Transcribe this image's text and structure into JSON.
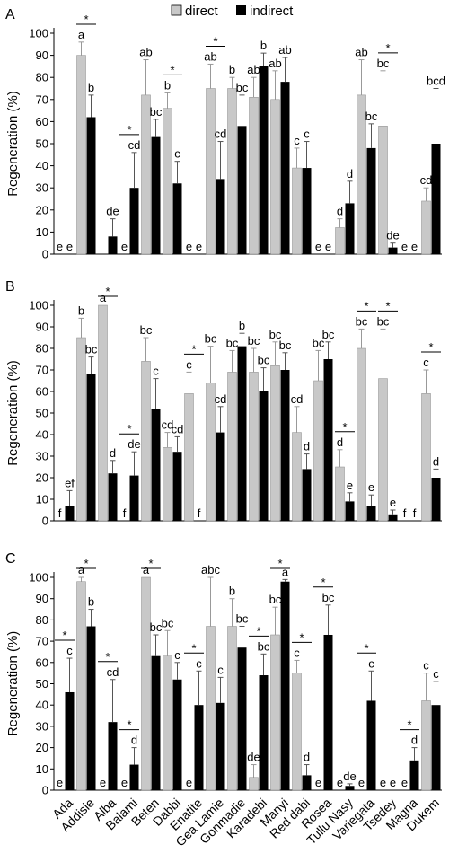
{
  "legend": {
    "direct": "direct",
    "indirect": "indirect"
  },
  "chart_data": [
    {
      "panel": "A",
      "type": "bar",
      "ylabel": "Regeneration (%)",
      "ylim": [
        0,
        100
      ],
      "yticks": [
        0,
        10,
        20,
        30,
        40,
        50,
        60,
        70,
        80,
        90,
        100
      ],
      "series": [
        {
          "name": "direct"
        },
        {
          "name": "indirect"
        }
      ],
      "groups": [
        {
          "d": 0,
          "de": 0,
          "i": 0,
          "ie": 0,
          "dl": "e",
          "il": "e",
          "star": false
        },
        {
          "d": 90,
          "de": 6,
          "i": 62,
          "ie": 10,
          "dl": "a",
          "il": "b",
          "star": true
        },
        {
          "d": 0,
          "de": 0,
          "i": 8,
          "ie": 8,
          "dl": "",
          "il": "de",
          "star": false
        },
        {
          "d": 0,
          "de": 0,
          "i": 30,
          "ie": 16,
          "dl": "e",
          "il": "cd",
          "star": true
        },
        {
          "d": 72,
          "de": 16,
          "i": 53,
          "ie": 8,
          "dl": "ab",
          "il": "bc",
          "star": false
        },
        {
          "d": 66,
          "de": 7,
          "i": 32,
          "ie": 10,
          "dl": "b",
          "il": "c",
          "star": true
        },
        {
          "d": 0,
          "de": 0,
          "i": 0,
          "ie": 0,
          "dl": "e",
          "il": "e",
          "star": false
        },
        {
          "d": 75,
          "de": 11,
          "i": 34,
          "ie": 17,
          "dl": "ab",
          "il": "cd",
          "star": true
        },
        {
          "d": 75,
          "de": 5,
          "i": 58,
          "ie": 14,
          "dl": "b",
          "il": "bc",
          "star": false
        },
        {
          "d": 71,
          "de": 9,
          "i": 85,
          "ie": 6,
          "dl": "ab",
          "il": "b",
          "star": false
        },
        {
          "d": 70,
          "de": 13,
          "i": 78,
          "ie": 11,
          "dl": "ab",
          "il": "ab",
          "star": false
        },
        {
          "d": 39,
          "de": 9,
          "i": 39,
          "ie": 12,
          "dl": "c",
          "il": "c",
          "star": false
        },
        {
          "d": 0,
          "de": 0,
          "i": 0,
          "ie": 0,
          "dl": "e",
          "il": "e",
          "star": false
        },
        {
          "d": 12,
          "de": 4,
          "i": 23,
          "ie": 10,
          "dl": "d",
          "il": "d",
          "star": false
        },
        {
          "d": 72,
          "de": 16,
          "i": 48,
          "ie": 11,
          "dl": "ab",
          "il": "bc",
          "star": false
        },
        {
          "d": 58,
          "de": 25,
          "i": 3,
          "ie": 2,
          "dl": "bc",
          "il": "de",
          "star": true
        },
        {
          "d": 0,
          "de": 0,
          "i": 0,
          "ie": 0,
          "dl": "e",
          "il": "e",
          "star": false
        },
        {
          "d": 24,
          "de": 6,
          "i": 50,
          "ie": 25,
          "dl": "cd",
          "il": "bcd",
          "star": false
        }
      ]
    },
    {
      "panel": "B",
      "type": "bar",
      "ylabel": "Regeneration (%)",
      "ylim": [
        0,
        100
      ],
      "yticks": [
        0,
        10,
        20,
        30,
        40,
        50,
        60,
        70,
        80,
        90,
        100
      ],
      "series": [
        {
          "name": "direct"
        },
        {
          "name": "indirect"
        }
      ],
      "groups": [
        {
          "d": 0,
          "de": 0,
          "i": 7,
          "ie": 7,
          "dl": "f",
          "il": "ef",
          "star": false
        },
        {
          "d": 85,
          "de": 9,
          "i": 68,
          "ie": 8,
          "dl": "b",
          "il": "bc",
          "star": false
        },
        {
          "d": 100,
          "de": 0,
          "i": 22,
          "ie": 6,
          "dl": "a",
          "il": "d",
          "star": true
        },
        {
          "d": 0,
          "de": 0,
          "i": 21,
          "ie": 11,
          "dl": "f",
          "il": "de",
          "star": true
        },
        {
          "d": 74,
          "de": 11,
          "i": 52,
          "ie": 14,
          "dl": "bc",
          "il": "c",
          "star": false
        },
        {
          "d": 34,
          "de": 7,
          "i": 32,
          "ie": 7,
          "dl": "cd",
          "il": "cd",
          "star": false
        },
        {
          "d": 59,
          "de": 10,
          "i": 0,
          "ie": 0,
          "dl": "c",
          "il": "f",
          "star": true
        },
        {
          "d": 64,
          "de": 17,
          "i": 41,
          "ie": 12,
          "dl": "bc",
          "il": "cd",
          "star": false
        },
        {
          "d": 69,
          "de": 10,
          "i": 81,
          "ie": 6,
          "dl": "bc",
          "il": "b",
          "star": false
        },
        {
          "d": 69,
          "de": 11,
          "i": 60,
          "ie": 11,
          "dl": "bc",
          "il": "bc",
          "star": false
        },
        {
          "d": 72,
          "de": 11,
          "i": 70,
          "ie": 8,
          "dl": "bc",
          "il": "bc",
          "star": false
        },
        {
          "d": 41,
          "de": 12,
          "i": 24,
          "ie": 7,
          "dl": "cd",
          "il": "d",
          "star": false
        },
        {
          "d": 65,
          "de": 14,
          "i": 75,
          "ie": 8,
          "dl": "bc",
          "il": "bc",
          "star": false
        },
        {
          "d": 25,
          "de": 8,
          "i": 9,
          "ie": 4,
          "dl": "d",
          "il": "e",
          "star": true
        },
        {
          "d": 80,
          "de": 9,
          "i": 7,
          "ie": 5,
          "dl": "bc",
          "il": "e",
          "star": true
        },
        {
          "d": 66,
          "de": 23,
          "i": 3,
          "ie": 2,
          "dl": "bc",
          "il": "e",
          "star": true
        },
        {
          "d": 0,
          "de": 0,
          "i": 0,
          "ie": 0,
          "dl": "f",
          "il": "f",
          "star": false
        },
        {
          "d": 59,
          "de": 11,
          "i": 20,
          "ie": 4,
          "dl": "c",
          "il": "d",
          "star": true
        }
      ]
    },
    {
      "panel": "C",
      "type": "bar",
      "ylabel": "Regeneration (%)",
      "ylim": [
        0,
        100
      ],
      "yticks": [
        0,
        10,
        20,
        30,
        40,
        50,
        60,
        70,
        80,
        90,
        100
      ],
      "series": [
        {
          "name": "direct"
        },
        {
          "name": "indirect"
        }
      ],
      "categories": [
        "Ada",
        "Addisie",
        "Alba",
        "Balami",
        "Beten",
        "Dabbi",
        "Enatite",
        "Gea Lamie",
        "Gonmadie",
        "Karadebi",
        "Manyi",
        "Red dabi",
        "Rosea",
        "Tullu Nasy",
        "Variegata",
        "Tsedey",
        "Magna",
        "Dukem"
      ],
      "groups": [
        {
          "d": 0,
          "de": 0,
          "i": 46,
          "ie": 16,
          "dl": "e",
          "il": "c",
          "star": true
        },
        {
          "d": 98,
          "de": 2,
          "i": 77,
          "ie": 8,
          "dl": "a",
          "il": "b",
          "star": true
        },
        {
          "d": 0,
          "de": 0,
          "i": 32,
          "ie": 20,
          "dl": "e",
          "il": "cd",
          "star": true
        },
        {
          "d": 0,
          "de": 0,
          "i": 12,
          "ie": 8,
          "dl": "e",
          "il": "d",
          "star": true
        },
        {
          "d": 100,
          "de": 0,
          "i": 63,
          "ie": 10,
          "dl": "a",
          "il": "bc",
          "star": true
        },
        {
          "d": 63,
          "de": 12,
          "i": 52,
          "ie": 8,
          "dl": "bc",
          "il": "c",
          "star": false
        },
        {
          "d": 0,
          "de": 0,
          "i": 40,
          "ie": 16,
          "dl": "e",
          "il": "c",
          "star": true
        },
        {
          "d": 77,
          "de": 23,
          "i": 41,
          "ie": 12,
          "dl": "abc",
          "il": "c",
          "star": false
        },
        {
          "d": 77,
          "de": 13,
          "i": 67,
          "ie": 10,
          "dl": "b",
          "il": "bc",
          "star": false
        },
        {
          "d": 6,
          "de": 6,
          "i": 54,
          "ie": 10,
          "dl": "de",
          "il": "bc",
          "star": true
        },
        {
          "d": 73,
          "de": 13,
          "i": 98,
          "ie": 1,
          "dl": "bc",
          "il": "a",
          "star": true
        },
        {
          "d": 55,
          "de": 6,
          "i": 7,
          "ie": 5,
          "dl": "c",
          "il": "d",
          "star": true
        },
        {
          "d": 0,
          "de": 0,
          "i": 73,
          "ie": 14,
          "dl": "e",
          "il": "bc",
          "star": true
        },
        {
          "d": 0,
          "de": 0,
          "i": 2,
          "ie": 1,
          "dl": "e",
          "il": "de",
          "star": false
        },
        {
          "d": 0,
          "de": 0,
          "i": 42,
          "ie": 14,
          "dl": "e",
          "il": "c",
          "star": true
        },
        {
          "d": 0,
          "de": 0,
          "i": 0,
          "ie": 0,
          "dl": "e",
          "il": "e",
          "star": false
        },
        {
          "d": 0,
          "de": 0,
          "i": 14,
          "ie": 6,
          "dl": "e",
          "il": "d",
          "star": true
        },
        {
          "d": 42,
          "de": 13,
          "i": 40,
          "ie": 11,
          "dl": "c",
          "il": "c",
          "star": false
        }
      ]
    }
  ]
}
